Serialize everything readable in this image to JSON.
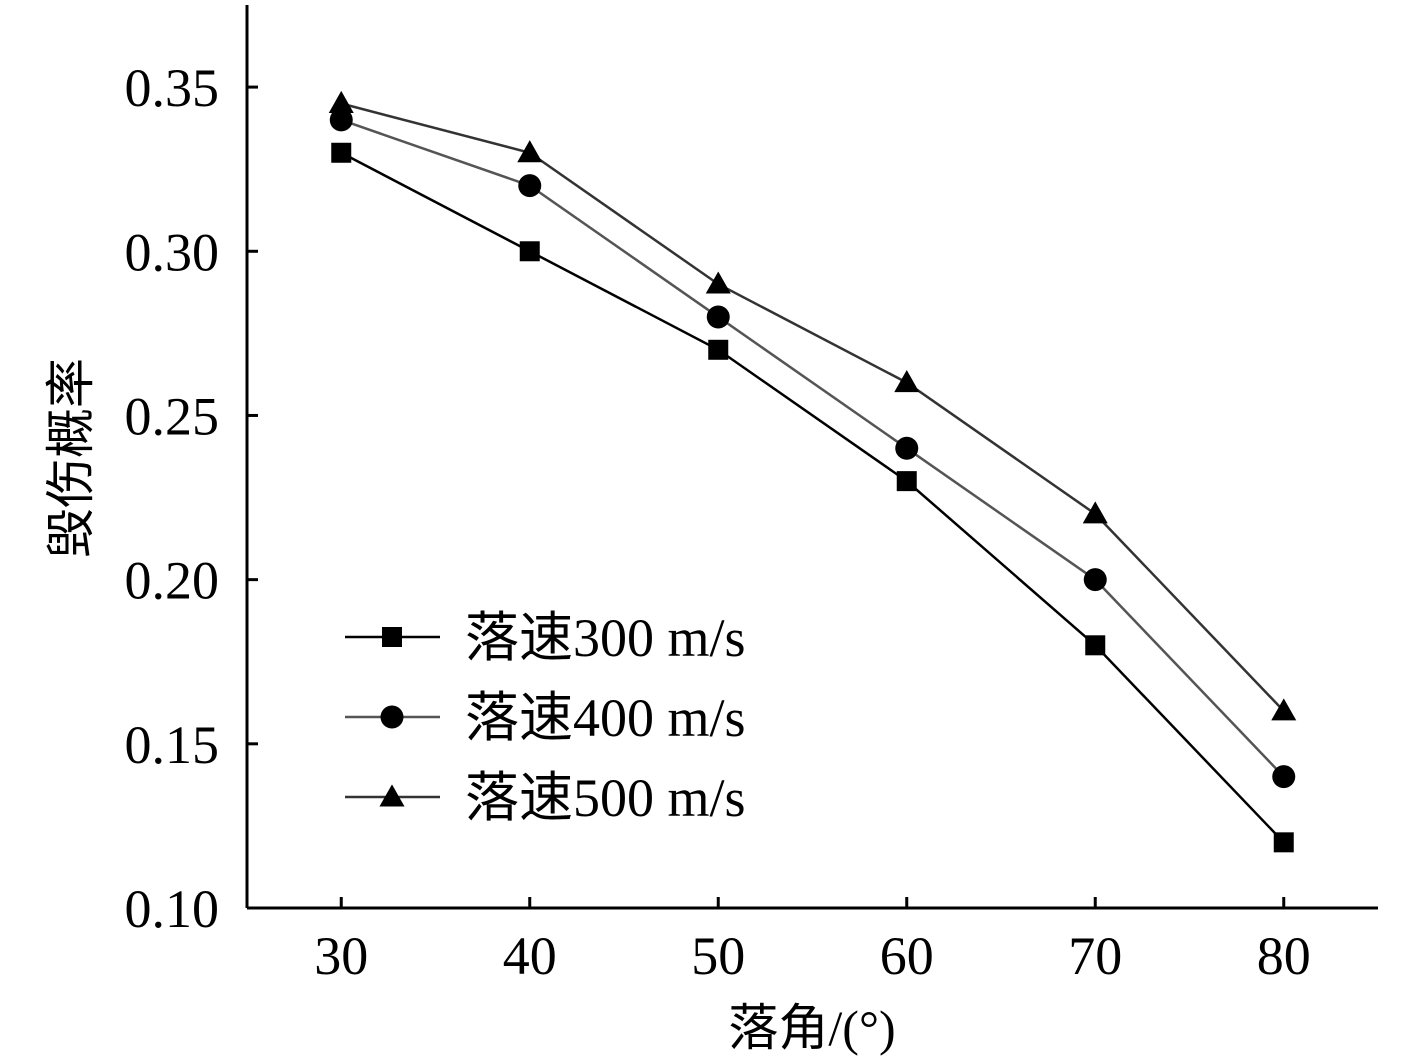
{
  "chart_data": {
    "type": "line",
    "xlabel": "落角/(°)",
    "ylabel": "毁伤概率",
    "x": [
      30,
      40,
      50,
      60,
      70,
      80
    ],
    "xticks": [
      "30",
      "40",
      "50",
      "60",
      "70",
      "80"
    ],
    "yticks": [
      "0.10",
      "0.15",
      "0.20",
      "0.25",
      "0.30",
      "0.35"
    ],
    "ylim": [
      0.1,
      0.375
    ],
    "xlim": [
      25,
      85
    ],
    "legend_position": "lower-left",
    "series": [
      {
        "name": "落速300 m/s",
        "marker": "square",
        "line_color": "#000000",
        "values": [
          0.33,
          0.3,
          0.27,
          0.23,
          0.18,
          0.12
        ]
      },
      {
        "name": "落速400 m/s",
        "marker": "circle",
        "line_color": "#555555",
        "values": [
          0.34,
          0.32,
          0.28,
          0.24,
          0.2,
          0.14
        ]
      },
      {
        "name": "落速500 m/s",
        "marker": "triangle",
        "line_color": "#333333",
        "values": [
          0.345,
          0.33,
          0.29,
          0.26,
          0.22,
          0.16
        ]
      }
    ]
  }
}
